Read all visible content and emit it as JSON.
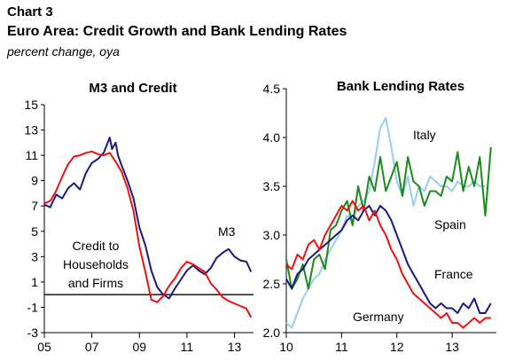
{
  "header": {
    "chart_number": "Chart 3",
    "title": "Euro Area: Credit Growth and Bank Lending Rates",
    "subtitle": "percent change, oya"
  },
  "chart_data": [
    {
      "type": "line",
      "title": "M3 and Credit",
      "xlabel": "",
      "ylabel": "",
      "x_ticks": [
        "05",
        "07",
        "09",
        "11",
        "13"
      ],
      "y_ticks": [
        15,
        13,
        11,
        9,
        7,
        5,
        3,
        1,
        -1,
        -3
      ],
      "xlim": [
        2005.0,
        2013.8
      ],
      "ylim": [
        -3,
        15
      ],
      "grid": false,
      "zero_line": 0,
      "annotations": [
        "M3",
        "Credit to",
        "Households",
        "and Firms"
      ],
      "series": [
        {
          "name": "M3",
          "color": "#1a1a80",
          "x": [
            2005.0,
            2005.25,
            2005.5,
            2005.75,
            2006.0,
            2006.25,
            2006.5,
            2006.75,
            2007.0,
            2007.25,
            2007.5,
            2007.75,
            2007.85,
            2008.0,
            2008.1,
            2008.25,
            2008.5,
            2008.75,
            2009.0,
            2009.25,
            2009.5,
            2009.75,
            2010.0,
            2010.25,
            2010.5,
            2010.75,
            2011.0,
            2011.25,
            2011.5,
            2011.75,
            2012.0,
            2012.25,
            2012.5,
            2012.75,
            2013.0,
            2013.25,
            2013.5,
            2013.7
          ],
          "y": [
            7.1,
            6.9,
            7.9,
            7.6,
            8.4,
            8.8,
            8.3,
            9.6,
            10.4,
            10.7,
            11.2,
            12.4,
            11.5,
            12.0,
            11.0,
            10.2,
            9.0,
            7.6,
            5.3,
            3.9,
            1.9,
            0.6,
            0.0,
            -0.3,
            0.5,
            1.2,
            1.9,
            2.3,
            1.9,
            1.6,
            2.1,
            2.9,
            3.3,
            3.6,
            3.0,
            2.7,
            2.6,
            1.8
          ]
        },
        {
          "name": "Credit to Households and Firms",
          "color": "#ee1111",
          "x": [
            2005.0,
            2005.25,
            2005.5,
            2005.75,
            2006.0,
            2006.25,
            2006.5,
            2006.75,
            2007.0,
            2007.25,
            2007.5,
            2007.75,
            2008.0,
            2008.25,
            2008.5,
            2008.75,
            2009.0,
            2009.25,
            2009.5,
            2009.75,
            2010.0,
            2010.25,
            2010.5,
            2010.75,
            2011.0,
            2011.25,
            2011.5,
            2011.75,
            2012.0,
            2012.25,
            2012.5,
            2012.75,
            2013.0,
            2013.25,
            2013.5,
            2013.7
          ],
          "y": [
            7.2,
            7.4,
            8.2,
            9.3,
            10.3,
            10.9,
            11.0,
            11.2,
            11.3,
            11.1,
            11.0,
            11.2,
            10.5,
            9.7,
            8.4,
            6.6,
            3.8,
            1.8,
            -0.4,
            -0.6,
            -0.1,
            0.7,
            1.3,
            2.1,
            2.6,
            2.4,
            2.1,
            1.8,
            0.9,
            0.4,
            -0.2,
            -0.5,
            -0.7,
            -0.9,
            -1.1,
            -1.8
          ]
        }
      ]
    },
    {
      "type": "line",
      "title": "Bank Lending Rates",
      "xlabel": "",
      "ylabel": "",
      "x_ticks": [
        "10",
        "11",
        "12",
        "13"
      ],
      "y_ticks": [
        "4.5",
        "4.0",
        "3.5",
        "3.0",
        "2.5",
        "2.0"
      ],
      "xlim": [
        2010.0,
        2013.8
      ],
      "ylim": [
        2.0,
        4.5
      ],
      "grid": false,
      "series": [
        {
          "name": "Italy",
          "color": "#99ccee",
          "x": [
            2010.0,
            2010.1,
            2010.2,
            2010.3,
            2010.4,
            2010.5,
            2010.6,
            2010.7,
            2010.8,
            2010.9,
            2011.0,
            2011.1,
            2011.2,
            2011.3,
            2011.4,
            2011.5,
            2011.6,
            2011.7,
            2011.8,
            2011.9,
            2012.0,
            2012.1,
            2012.2,
            2012.3,
            2012.4,
            2012.5,
            2012.6,
            2012.7,
            2012.8,
            2012.9,
            2013.0,
            2013.1,
            2013.2,
            2013.3,
            2013.4,
            2013.5,
            2013.6
          ],
          "y": [
            2.1,
            2.05,
            2.2,
            2.35,
            2.45,
            2.55,
            2.6,
            2.75,
            2.85,
            2.95,
            3.05,
            3.2,
            3.15,
            3.3,
            3.35,
            3.45,
            3.75,
            4.1,
            4.2,
            3.9,
            3.55,
            3.4,
            3.6,
            3.3,
            3.5,
            3.45,
            3.6,
            3.55,
            3.5,
            3.5,
            3.45,
            3.55,
            3.5,
            3.5,
            3.55,
            3.5,
            3.5
          ]
        },
        {
          "name": "Spain",
          "color": "#1a8a1a",
          "x": [
            2010.0,
            2010.1,
            2010.2,
            2010.3,
            2010.4,
            2010.5,
            2010.6,
            2010.7,
            2010.8,
            2010.9,
            2011.0,
            2011.1,
            2011.2,
            2011.3,
            2011.4,
            2011.5,
            2011.6,
            2011.7,
            2011.8,
            2011.9,
            2012.0,
            2012.1,
            2012.2,
            2012.3,
            2012.4,
            2012.5,
            2012.6,
            2012.7,
            2012.8,
            2012.9,
            2013.0,
            2013.1,
            2013.2,
            2013.3,
            2013.4,
            2013.5,
            2013.6,
            2013.7
          ],
          "y": [
            2.75,
            2.45,
            2.55,
            2.7,
            2.45,
            2.75,
            2.8,
            2.65,
            3.05,
            3.1,
            3.25,
            3.35,
            3.1,
            3.5,
            3.25,
            3.6,
            3.45,
            3.8,
            3.45,
            3.6,
            3.75,
            3.4,
            3.8,
            3.55,
            3.5,
            3.3,
            3.45,
            3.45,
            3.4,
            3.6,
            3.55,
            3.85,
            3.45,
            3.7,
            3.5,
            3.8,
            3.2,
            3.9
          ]
        },
        {
          "name": "France",
          "color": "#1a1a80",
          "x": [
            2010.0,
            2010.1,
            2010.2,
            2010.3,
            2010.4,
            2010.5,
            2010.6,
            2010.7,
            2010.8,
            2010.9,
            2011.0,
            2011.1,
            2011.2,
            2011.3,
            2011.4,
            2011.5,
            2011.6,
            2011.7,
            2011.8,
            2011.9,
            2012.0,
            2012.1,
            2012.2,
            2012.3,
            2012.4,
            2012.5,
            2012.6,
            2012.7,
            2012.8,
            2012.9,
            2013.0,
            2013.1,
            2013.2,
            2013.3,
            2013.4,
            2013.5,
            2013.6,
            2013.7
          ],
          "y": [
            2.55,
            2.45,
            2.6,
            2.65,
            2.75,
            2.8,
            2.85,
            2.9,
            2.95,
            3.0,
            3.05,
            3.15,
            3.2,
            3.15,
            3.25,
            3.3,
            3.2,
            3.3,
            3.25,
            3.15,
            3.0,
            2.85,
            2.7,
            2.6,
            2.5,
            2.4,
            2.3,
            2.25,
            2.3,
            2.25,
            2.25,
            2.2,
            2.3,
            2.25,
            2.35,
            2.2,
            2.2,
            2.3
          ]
        },
        {
          "name": "Germany",
          "color": "#ee1111",
          "x": [
            2010.0,
            2010.1,
            2010.2,
            2010.3,
            2010.4,
            2010.5,
            2010.6,
            2010.7,
            2010.8,
            2010.9,
            2011.0,
            2011.1,
            2011.2,
            2011.3,
            2011.4,
            2011.5,
            2011.6,
            2011.7,
            2011.8,
            2011.9,
            2012.0,
            2012.1,
            2012.2,
            2012.3,
            2012.4,
            2012.5,
            2012.6,
            2012.7,
            2012.8,
            2012.9,
            2013.0,
            2013.1,
            2013.2,
            2013.3,
            2013.4,
            2013.5,
            2013.6,
            2013.7
          ],
          "y": [
            2.7,
            2.65,
            2.8,
            2.75,
            2.9,
            2.95,
            2.85,
            3.0,
            3.1,
            3.2,
            3.3,
            3.25,
            3.35,
            3.25,
            3.3,
            3.15,
            3.25,
            3.1,
            3.0,
            2.85,
            2.75,
            2.6,
            2.5,
            2.4,
            2.35,
            2.3,
            2.25,
            2.2,
            2.15,
            2.2,
            2.1,
            2.1,
            2.05,
            2.1,
            2.15,
            2.1,
            2.15,
            2.15
          ]
        }
      ]
    }
  ]
}
